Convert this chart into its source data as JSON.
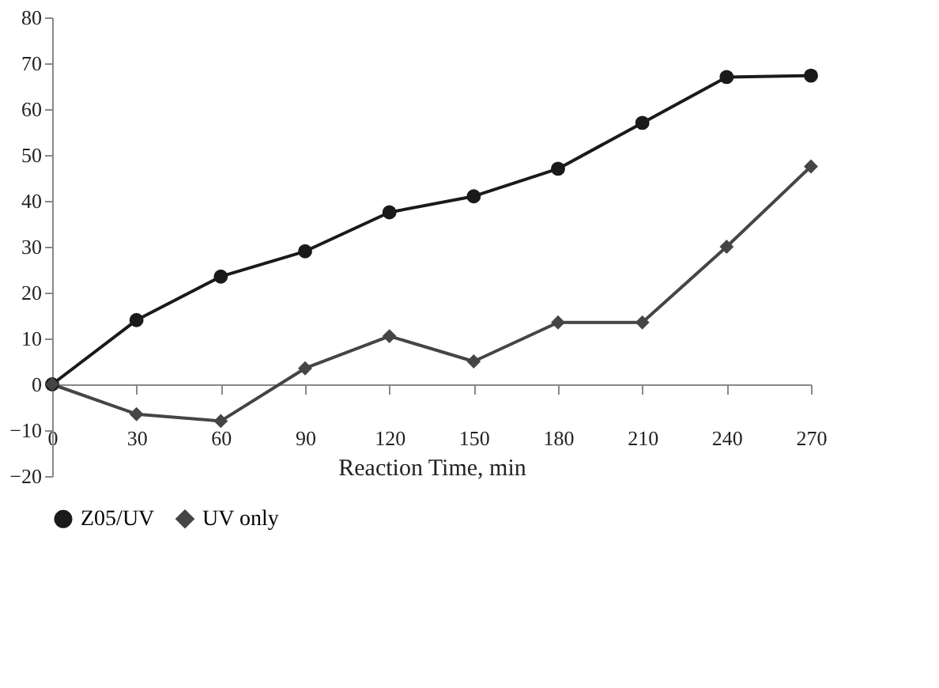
{
  "chart_data": {
    "type": "line",
    "xlabel": "Reaction Time, min",
    "x": [
      0,
      30,
      60,
      90,
      120,
      150,
      180,
      210,
      240,
      270
    ],
    "series": [
      {
        "name": "Z05/UV",
        "color": "#1a1a1a",
        "marker": "circle",
        "values": [
          0,
          14,
          23.5,
          29,
          37.5,
          41,
          47,
          57,
          67,
          67.3
        ]
      },
      {
        "name": "UV only",
        "color": "#454545",
        "marker": "diamond",
        "values": [
          0,
          -6.5,
          -8,
          3.5,
          10.5,
          5,
          13.5,
          13.5,
          30,
          47.5
        ]
      }
    ],
    "xlim": [
      0,
      270
    ],
    "xticks": [
      0,
      30,
      60,
      90,
      120,
      150,
      180,
      210,
      240,
      270
    ],
    "ylim": [
      -20,
      80
    ],
    "yticks": [
      -20,
      -10,
      0,
      10,
      20,
      30,
      40,
      50,
      60,
      70,
      80
    ],
    "grid": false,
    "legend": "bottom",
    "line_style": "solid"
  }
}
